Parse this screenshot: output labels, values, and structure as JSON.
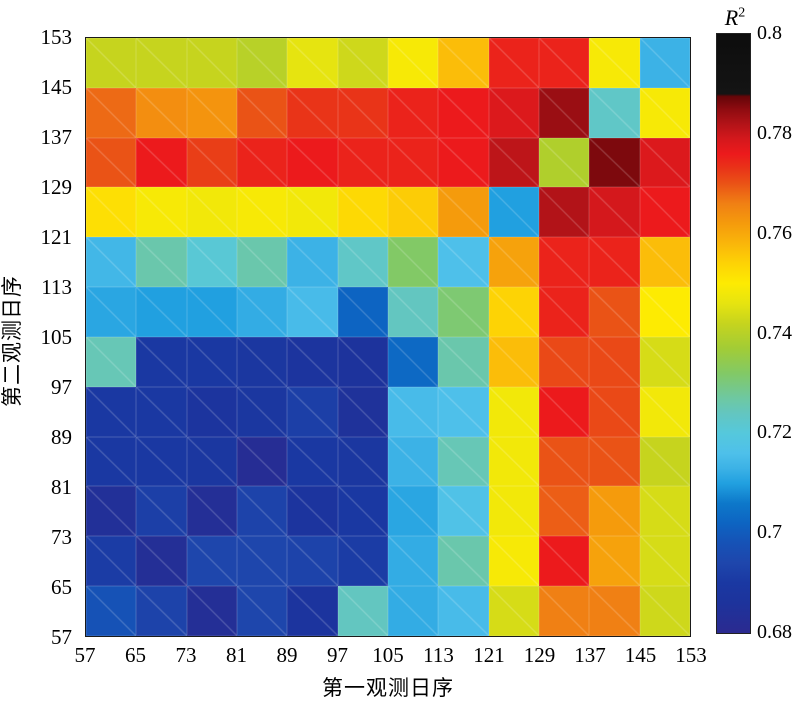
{
  "chart_data": {
    "type": "heatmap",
    "xlabel": "第一观测日序",
    "ylabel": "第二观测日序",
    "x_ticks": [
      "57",
      "65",
      "73",
      "81",
      "89",
      "97",
      "105",
      "113",
      "121",
      "129",
      "137",
      "145",
      "153"
    ],
    "y_ticks_top_to_bottom": [
      "153",
      "145",
      "137",
      "129",
      "121",
      "113",
      "105",
      "97",
      "89",
      "81",
      "73",
      "65",
      "57"
    ],
    "rows_order": "top-to-bottom, row 0 = second-observation-day band 145-153, col 0 = first-observation-day band 57-65",
    "values": [
      [
        0.742,
        0.742,
        0.742,
        0.74,
        0.746,
        0.743,
        0.749,
        0.757,
        0.775,
        0.775,
        0.749,
        0.713
      ],
      [
        0.768,
        0.764,
        0.763,
        0.77,
        0.773,
        0.773,
        0.775,
        0.776,
        0.778,
        0.784,
        0.723,
        0.749
      ],
      [
        0.77,
        0.776,
        0.772,
        0.775,
        0.776,
        0.775,
        0.775,
        0.776,
        0.781,
        0.739,
        0.786,
        0.778
      ],
      [
        0.752,
        0.749,
        0.748,
        0.749,
        0.748,
        0.753,
        0.755,
        0.762,
        0.71,
        0.782,
        0.779,
        0.776
      ],
      [
        0.714,
        0.726,
        0.721,
        0.726,
        0.713,
        0.723,
        0.732,
        0.716,
        0.761,
        0.775,
        0.775,
        0.757
      ],
      [
        0.711,
        0.71,
        0.71,
        0.712,
        0.715,
        0.702,
        0.724,
        0.731,
        0.754,
        0.775,
        0.77,
        0.75
      ],
      [
        0.725,
        0.69,
        0.69,
        0.689,
        0.687,
        0.686,
        0.703,
        0.726,
        0.757,
        0.771,
        0.771,
        0.744
      ],
      [
        0.69,
        0.69,
        0.687,
        0.689,
        0.692,
        0.685,
        0.715,
        0.716,
        0.748,
        0.776,
        0.771,
        0.748
      ],
      [
        0.69,
        0.69,
        0.689,
        0.682,
        0.69,
        0.689,
        0.713,
        0.725,
        0.748,
        0.77,
        0.77,
        0.742
      ],
      [
        0.684,
        0.692,
        0.683,
        0.693,
        0.687,
        0.69,
        0.711,
        0.717,
        0.748,
        0.769,
        0.762,
        0.744
      ],
      [
        0.691,
        0.683,
        0.694,
        0.694,
        0.693,
        0.691,
        0.712,
        0.726,
        0.749,
        0.776,
        0.761,
        0.744
      ],
      [
        0.698,
        0.693,
        0.683,
        0.694,
        0.687,
        0.724,
        0.712,
        0.715,
        0.744,
        0.766,
        0.766,
        0.743
      ]
    ],
    "colorbar": {
      "label_base": "R",
      "label_exp": "2",
      "min": 0.68,
      "max": 0.8,
      "ticks": [
        "0.8",
        "0.78",
        "0.76",
        "0.74",
        "0.72",
        "0.7",
        "0.68"
      ]
    },
    "colormap_stops": [
      [
        0.68,
        "#2b2a90"
      ],
      [
        0.686,
        "#1d339c"
      ],
      [
        0.69,
        "#1a38a2"
      ],
      [
        0.694,
        "#1e46ac"
      ],
      [
        0.698,
        "#1652b6"
      ],
      [
        0.702,
        "#0d64c2"
      ],
      [
        0.706,
        "#0d78ca"
      ],
      [
        0.71,
        "#21a0e0"
      ],
      [
        0.713,
        "#3cb2e6"
      ],
      [
        0.716,
        "#4ec0ea"
      ],
      [
        0.72,
        "#55c8dc"
      ],
      [
        0.724,
        "#63c6c0"
      ],
      [
        0.727,
        "#6ec8a2"
      ],
      [
        0.732,
        "#82c966"
      ],
      [
        0.737,
        "#a2cc36"
      ],
      [
        0.742,
        "#c6d41e"
      ],
      [
        0.746,
        "#e6e410"
      ],
      [
        0.75,
        "#fdeb02"
      ],
      [
        0.754,
        "#fdd305"
      ],
      [
        0.758,
        "#fab60a"
      ],
      [
        0.762,
        "#f59b0c"
      ],
      [
        0.766,
        "#f08014"
      ],
      [
        0.77,
        "#ea5316"
      ],
      [
        0.773,
        "#e93418"
      ],
      [
        0.776,
        "#ec1a1c"
      ],
      [
        0.779,
        "#d4181c"
      ],
      [
        0.782,
        "#b21318"
      ],
      [
        0.785,
        "#8e0b10"
      ],
      [
        0.7875,
        "#640508"
      ],
      [
        0.788,
        "#141414"
      ],
      [
        0.8,
        "#0d0d0d"
      ]
    ],
    "grid": false,
    "legend_position": "right-colorbar"
  }
}
